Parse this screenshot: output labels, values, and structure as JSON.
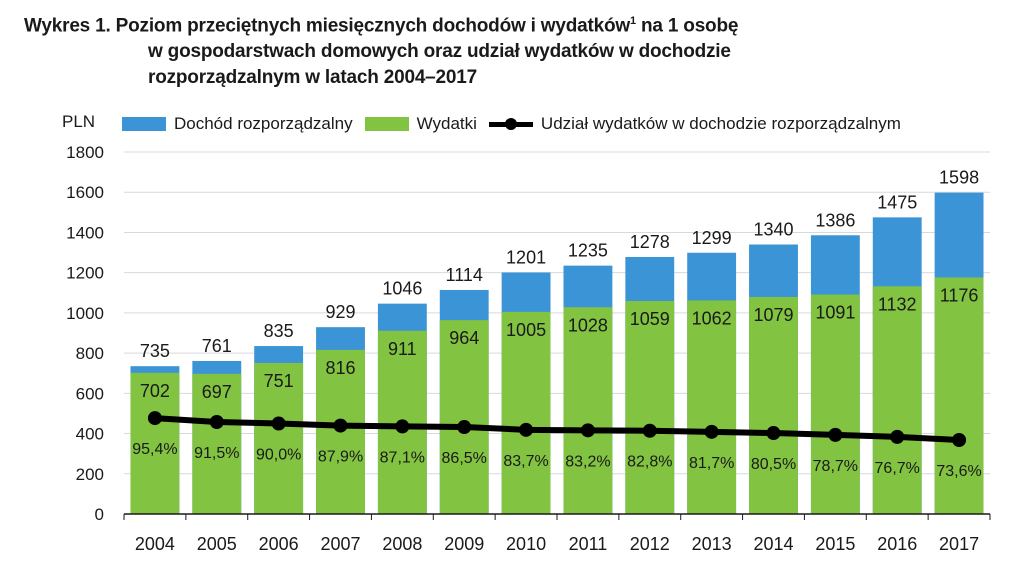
{
  "title": {
    "line1_prefix": "Wykres 1. Poziom przeciętnych miesięcznych dochodów i wydatków",
    "line1_sup": "1",
    "line1_suffix": " na 1 osobę",
    "line2": "w gospodarstwach domowych oraz udział wydatków w dochodzie",
    "line3": "rozporządzalnym w latach 2004–2017"
  },
  "y_unit": "PLN",
  "colors": {
    "income": "#3b94d6",
    "expenses": "#82c341",
    "share": "#000000"
  },
  "chart_data": {
    "type": "bar",
    "categories": [
      "2004",
      "2005",
      "2006",
      "2007",
      "2008",
      "2009",
      "2010",
      "2011",
      "2012",
      "2013",
      "2014",
      "2015",
      "2016",
      "2017"
    ],
    "series": [
      {
        "name": "Dochód rozporządzalny",
        "values": [
          735,
          761,
          835,
          929,
          1046,
          1114,
          1201,
          1235,
          1278,
          1299,
          1340,
          1386,
          1475,
          1598
        ]
      },
      {
        "name": "Wydatki",
        "values": [
          702,
          697,
          751,
          816,
          911,
          964,
          1005,
          1028,
          1059,
          1062,
          1079,
          1091,
          1132,
          1176
        ]
      },
      {
        "name": "Udział wydatków w dochodzie rozporządzalnym",
        "type": "line",
        "values": [
          95.4,
          91.5,
          90.0,
          87.9,
          87.1,
          86.5,
          83.7,
          83.2,
          82.8,
          81.7,
          80.5,
          78.7,
          76.7,
          73.6
        ],
        "labels": [
          "95,4%",
          "91,5%",
          "90,0%",
          "87,9%",
          "87,1%",
          "86,5%",
          "83,7%",
          "83,2%",
          "82,8%",
          "81,7%",
          "80,5%",
          "78,7%",
          "76,7%",
          "73,6%"
        ]
      }
    ],
    "ylim": [
      0,
      1800
    ],
    "yticks": [
      0,
      200,
      400,
      600,
      800,
      1000,
      1200,
      1400,
      1600,
      1800
    ],
    "ylabel": "PLN",
    "grid": true,
    "legend": "top"
  }
}
